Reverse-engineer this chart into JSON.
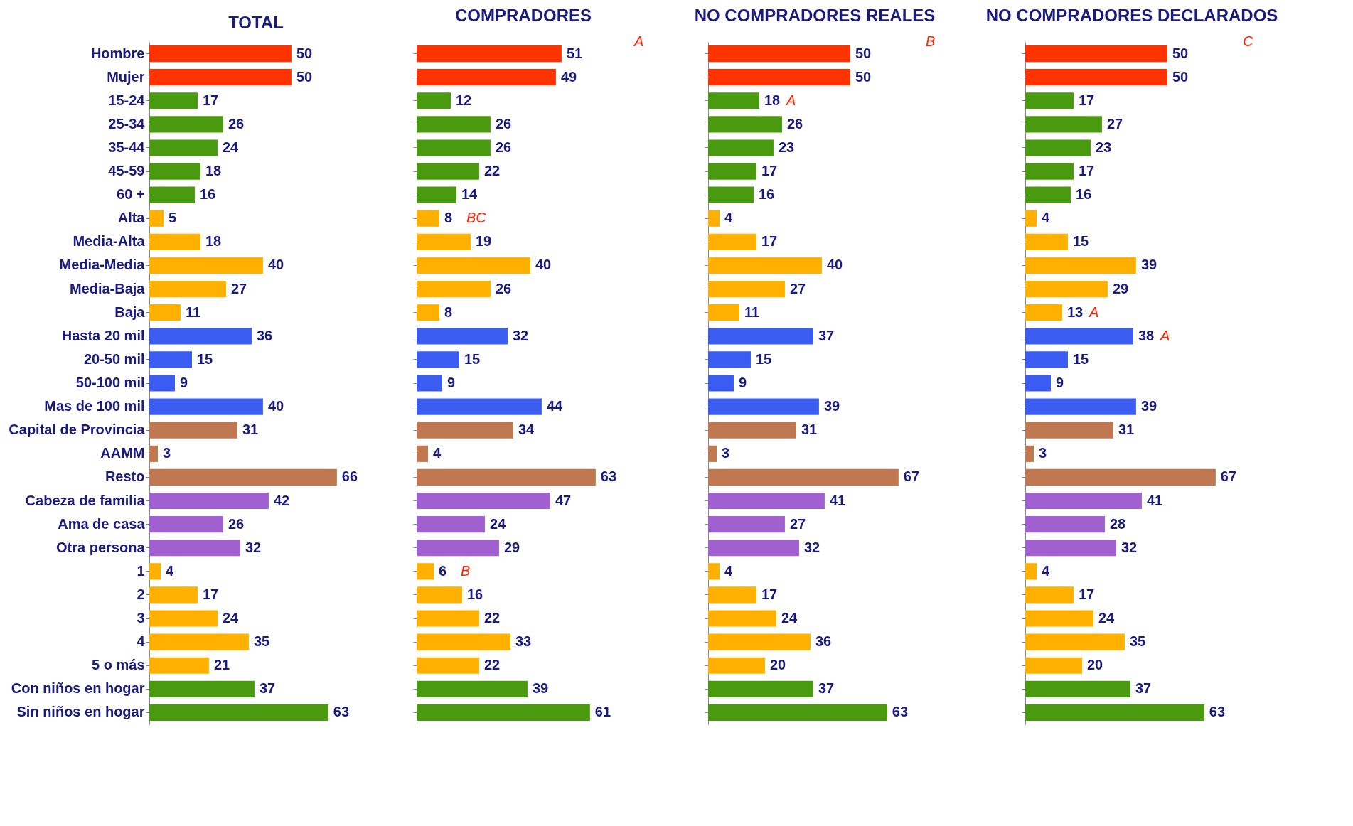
{
  "chart_data": [
    {
      "type": "bar",
      "orientation": "horizontal",
      "title": "TOTAL",
      "data_labels": true,
      "tick_labels": "y",
      "grid": false,
      "categories": [
        "Hombre",
        "Mujer",
        "15-24",
        "25-34",
        "35-44",
        "45-59",
        "60 +",
        "Alta",
        "Media-Alta",
        "Media-Media",
        "Media-Baja",
        "Baja",
        "Hasta 20 mil",
        "20-50 mil",
        "50-100 mil",
        "Mas de 100 mil",
        "Capital de Provincia",
        "AAMM",
        "Resto",
        "Cabeza de familia",
        "Ama de casa",
        "Otra persona",
        "1",
        "2",
        "3",
        "4",
        "5 o más",
        "Con niños en hogar",
        "Sin niños en hogar"
      ],
      "values": [
        50,
        50,
        17,
        26,
        24,
        18,
        16,
        5,
        18,
        40,
        27,
        11,
        36,
        15,
        9,
        40,
        31,
        3,
        66,
        42,
        26,
        32,
        4,
        17,
        24,
        35,
        21,
        37,
        63
      ],
      "colors": [
        "#ff3300",
        "#ff3300",
        "#4a9a10",
        "#4a9a10",
        "#4a9a10",
        "#4a9a10",
        "#4a9a10",
        "#ffb000",
        "#ffb000",
        "#ffb000",
        "#ffb000",
        "#ffb000",
        "#3a5cf0",
        "#3a5cf0",
        "#3a5cf0",
        "#3a5cf0",
        "#c07850",
        "#c07850",
        "#c07850",
        "#a060d0",
        "#a060d0",
        "#a060d0",
        "#ffb000",
        "#ffb000",
        "#ffb000",
        "#ffb000",
        "#ffb000",
        "#4a9a10",
        "#4a9a10"
      ]
    },
    {
      "type": "bar",
      "orientation": "horizontal",
      "title": "COMPRADORES",
      "data_labels": true,
      "tick_labels": false,
      "grid": false,
      "categories": [
        "Hombre",
        "Mujer",
        "15-24",
        "25-34",
        "35-44",
        "45-59",
        "60 +",
        "Alta",
        "Media-Alta",
        "Media-Media",
        "Media-Baja",
        "Baja",
        "Hasta 20 mil",
        "20-50 mil",
        "50-100 mil",
        "Mas de 100 mil",
        "Capital de Provincia",
        "AAMM",
        "Resto",
        "Cabeza de familia",
        "Ama de casa",
        "Otra persona",
        "1",
        "2",
        "3",
        "4",
        "5 o más",
        "Con niños en hogar",
        "Sin niños en hogar"
      ],
      "values": [
        51,
        49,
        12,
        26,
        26,
        22,
        14,
        8,
        19,
        40,
        26,
        8,
        32,
        15,
        9,
        44,
        34,
        4,
        63,
        47,
        24,
        29,
        6,
        16,
        22,
        33,
        22,
        39,
        61
      ],
      "colors": [
        "#ff3300",
        "#ff3300",
        "#4a9a10",
        "#4a9a10",
        "#4a9a10",
        "#4a9a10",
        "#4a9a10",
        "#ffb000",
        "#ffb000",
        "#ffb000",
        "#ffb000",
        "#ffb000",
        "#3a5cf0",
        "#3a5cf0",
        "#3a5cf0",
        "#3a5cf0",
        "#c07850",
        "#c07850",
        "#c07850",
        "#a060d0",
        "#a060d0",
        "#a060d0",
        "#ffb000",
        "#ffb000",
        "#ffb000",
        "#ffb000",
        "#ffb000",
        "#4a9a10",
        "#4a9a10"
      ],
      "annotations": [
        "A",
        {
          "text": "BC",
          "x": 8,
          "y": "Alta"
        },
        {
          "text": "B",
          "x": 6,
          "y": "1"
        }
      ]
    },
    {
      "type": "bar",
      "orientation": "horizontal",
      "title": "NO COMPRADORES REALES",
      "data_labels": true,
      "tick_labels": false,
      "grid": false,
      "categories": [
        "Hombre",
        "Mujer",
        "15-24",
        "25-34",
        "35-44",
        "45-59",
        "60 +",
        "Alta",
        "Media-Alta",
        "Media-Media",
        "Media-Baja",
        "Baja",
        "Hasta 20 mil",
        "20-50 mil",
        "50-100 mil",
        "Mas de 100 mil",
        "Capital de Provincia",
        "AAMM",
        "Resto",
        "Cabeza de familia",
        "Ama de casa",
        "Otra persona",
        "1",
        "2",
        "3",
        "4",
        "5 o más",
        "Con niños en hogar",
        "Sin niños en hogar"
      ],
      "values": [
        50,
        50,
        18,
        26,
        23,
        17,
        16,
        4,
        17,
        40,
        27,
        11,
        37,
        15,
        9,
        39,
        31,
        3,
        67,
        41,
        27,
        32,
        4,
        17,
        24,
        36,
        20,
        37,
        63
      ],
      "colors": [
        "#ff3300",
        "#ff3300",
        "#4a9a10",
        "#4a9a10",
        "#4a9a10",
        "#4a9a10",
        "#4a9a10",
        "#ffb000",
        "#ffb000",
        "#ffb000",
        "#ffb000",
        "#ffb000",
        "#3a5cf0",
        "#3a5cf0",
        "#3a5cf0",
        "#3a5cf0",
        "#c07850",
        "#c07850",
        "#c07850",
        "#a060d0",
        "#a060d0",
        "#a060d0",
        "#ffb000",
        "#ffb000",
        "#ffb000",
        "#ffb000",
        "#ffb000",
        "#4a9a10",
        "#4a9a10"
      ],
      "annotations": [
        "B",
        {
          "text": "A",
          "x": 18,
          "y": "15-24"
        }
      ]
    },
    {
      "type": "bar",
      "orientation": "horizontal",
      "title": "NO COMPRADORES DECLARADOS",
      "data_labels": true,
      "tick_labels": false,
      "grid": false,
      "categories": [
        "Hombre",
        "Mujer",
        "15-24",
        "25-34",
        "35-44",
        "45-59",
        "60 +",
        "Alta",
        "Media-Alta",
        "Media-Media",
        "Media-Baja",
        "Baja",
        "Hasta 20 mil",
        "20-50 mil",
        "50-100 mil",
        "Mas de 100 mil",
        "Capital de Provincia",
        "AAMM",
        "Resto",
        "Cabeza de familia",
        "Ama de casa",
        "Otra persona",
        "1",
        "2",
        "3",
        "4",
        "5 o más",
        "Con niños en hogar",
        "Sin niños en hogar"
      ],
      "values": [
        50,
        50,
        17,
        27,
        23,
        17,
        16,
        4,
        15,
        39,
        29,
        13,
        38,
        15,
        9,
        39,
        31,
        3,
        67,
        41,
        28,
        32,
        4,
        17,
        24,
        35,
        20,
        37,
        63
      ],
      "colors": [
        "#ff3300",
        "#ff3300",
        "#4a9a10",
        "#4a9a10",
        "#4a9a10",
        "#4a9a10",
        "#4a9a10",
        "#ffb000",
        "#ffb000",
        "#ffb000",
        "#ffb000",
        "#ffb000",
        "#3a5cf0",
        "#3a5cf0",
        "#3a5cf0",
        "#3a5cf0",
        "#c07850",
        "#c07850",
        "#c07850",
        "#a060d0",
        "#a060d0",
        "#a060d0",
        "#ffb000",
        "#ffb000",
        "#ffb000",
        "#ffb000",
        "#ffb000",
        "#4a9a10",
        "#4a9a10"
      ],
      "annotations": [
        "C",
        {
          "text": "A",
          "x": 13,
          "y": "Baja"
        },
        {
          "text": "A",
          "x": 38,
          "y": "Hasta 20 mil"
        }
      ]
    }
  ]
}
